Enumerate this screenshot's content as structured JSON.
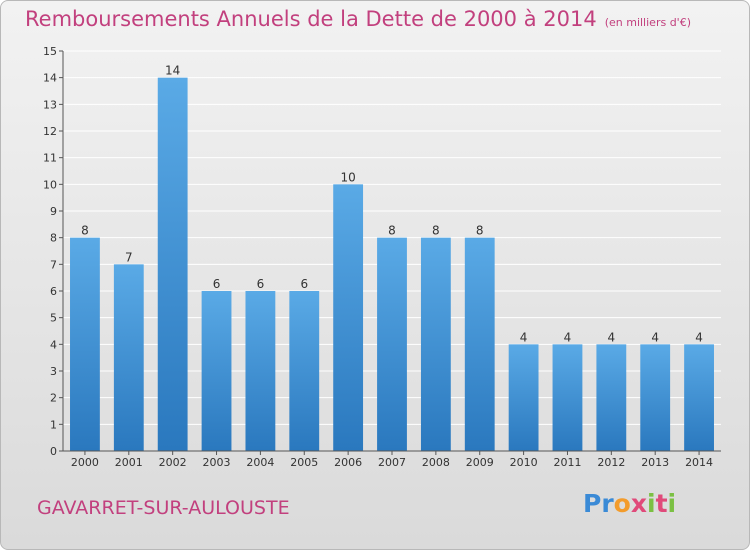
{
  "header": {
    "title": "Remboursements Annuels de la Dette de 2000 à 2014",
    "unit": "(en milliers d'€)"
  },
  "footer": {
    "commune": "GAVARRET-SUR-AULOUSTE",
    "logo_text": "Proxiti"
  },
  "colors": {
    "bar_top": "#5aaae6",
    "bar_bottom": "#2a78be",
    "title": "#c2407e",
    "grid": "#ffffff",
    "axis": "#555555"
  },
  "chart_data": {
    "type": "bar",
    "title": "Remboursements Annuels de la Dette de 2000 à 2014",
    "subtitle": "(en milliers d'€)",
    "xlabel": "",
    "ylabel": "",
    "categories": [
      "2000",
      "2001",
      "2002",
      "2003",
      "2004",
      "2005",
      "2006",
      "2007",
      "2008",
      "2009",
      "2010",
      "2011",
      "2012",
      "2013",
      "2014"
    ],
    "values": [
      8,
      7,
      14,
      6,
      6,
      6,
      10,
      8,
      8,
      8,
      4,
      4,
      4,
      4,
      4
    ],
    "ylim": [
      0,
      15
    ],
    "yticks": [
      0,
      1,
      2,
      3,
      4,
      5,
      6,
      7,
      8,
      9,
      10,
      11,
      12,
      13,
      14,
      15
    ],
    "grid": true,
    "data_labels": true,
    "legend": "none"
  }
}
